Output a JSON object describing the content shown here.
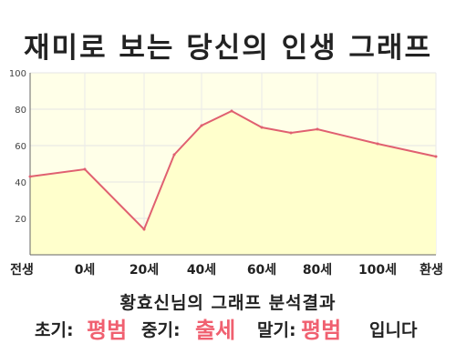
{
  "title": "재미로 보는 당신의 인생 그래프",
  "chart_data": {
    "type": "area",
    "x_ticks": [
      "전생",
      "0세",
      "20세",
      "40세",
      "60세",
      "80세",
      "100세",
      "환생"
    ],
    "y_ticks": [
      20,
      40,
      60,
      80,
      100
    ],
    "ylim": [
      0,
      100
    ],
    "series": [
      {
        "points": [
          {
            "x": "전생",
            "y": 43
          },
          {
            "x": "0세",
            "y": 47
          },
          {
            "x": "20세",
            "y": 14
          },
          {
            "x": "30세",
            "y": 55
          },
          {
            "x": "40세",
            "y": 71
          },
          {
            "x": "50세",
            "y": 79
          },
          {
            "x": "60세",
            "y": 70
          },
          {
            "x": "70세",
            "y": 67
          },
          {
            "x": "80세",
            "y": 69
          },
          {
            "x": "100세",
            "y": 61
          },
          {
            "x": "환생",
            "y": 54
          }
        ]
      }
    ],
    "grid": true
  },
  "colors": {
    "line": "#e06070",
    "fill": "#ffffcc",
    "highlight": "#f06070"
  },
  "summary": "황효신님의 그래프 분석결과",
  "result": {
    "early_label": "초기:",
    "early_value": "평범",
    "middle_label": "중기:",
    "middle_value": "출세",
    "late_label": "말기:",
    "late_value": "평범",
    "ending": "입니다"
  }
}
